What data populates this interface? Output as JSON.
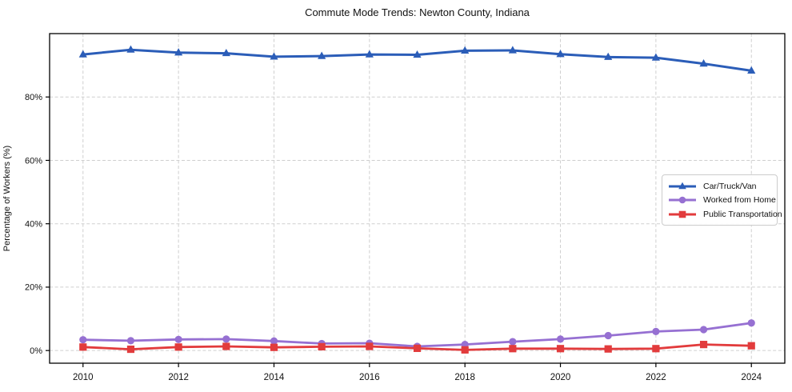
{
  "chart_data": {
    "type": "line",
    "title": "Commute Mode Trends: Newton County, Indiana",
    "xlabel": "",
    "ylabel": "Percentage of Workers (%)",
    "x": [
      2010,
      2011,
      2012,
      2013,
      2014,
      2015,
      2016,
      2017,
      2018,
      2019,
      2020,
      2021,
      2022,
      2023,
      2024
    ],
    "xticks": [
      2010,
      2012,
      2014,
      2016,
      2018,
      2020,
      2022,
      2024
    ],
    "xtick_labels": [
      "2010",
      "2012",
      "2014",
      "2016",
      "2018",
      "2020",
      "2022",
      "2024"
    ],
    "yticks": [
      0,
      20,
      40,
      60,
      80
    ],
    "ytick_labels": [
      "0%",
      "20%",
      "40%",
      "60%",
      "80%"
    ],
    "xlim": [
      2009.3,
      2024.7
    ],
    "ylim": [
      -4,
      100
    ],
    "grid": true,
    "grid_style": "dashed",
    "legend_position": "center-right",
    "axis_color": "#000000",
    "grid_color": "#cfcfcf",
    "tick_text_color": "#111111",
    "series": [
      {
        "name": "Car/Truck/Van",
        "color": "#2b5db8",
        "marker": "triangle",
        "line_width": 3,
        "values": [
          93.4,
          94.9,
          94.0,
          93.8,
          92.7,
          92.9,
          93.4,
          93.3,
          94.6,
          94.7,
          93.5,
          92.6,
          92.4,
          90.5,
          88.3
        ]
      },
      {
        "name": "Worked from Home",
        "color": "#9670d2",
        "marker": "circle",
        "line_width": 2.8,
        "values": [
          3.4,
          3.1,
          3.5,
          3.6,
          3.0,
          2.2,
          2.3,
          1.3,
          1.9,
          2.8,
          3.6,
          4.7,
          6.0,
          6.6,
          8.7
        ]
      },
      {
        "name": "Public Transportation",
        "color": "#e23b3c",
        "marker": "square",
        "line_width": 2.8,
        "values": [
          1.1,
          0.4,
          1.1,
          1.3,
          1.0,
          1.2,
          1.3,
          0.7,
          0.2,
          0.6,
          0.6,
          0.5,
          0.6,
          1.9,
          1.5
        ]
      }
    ]
  }
}
